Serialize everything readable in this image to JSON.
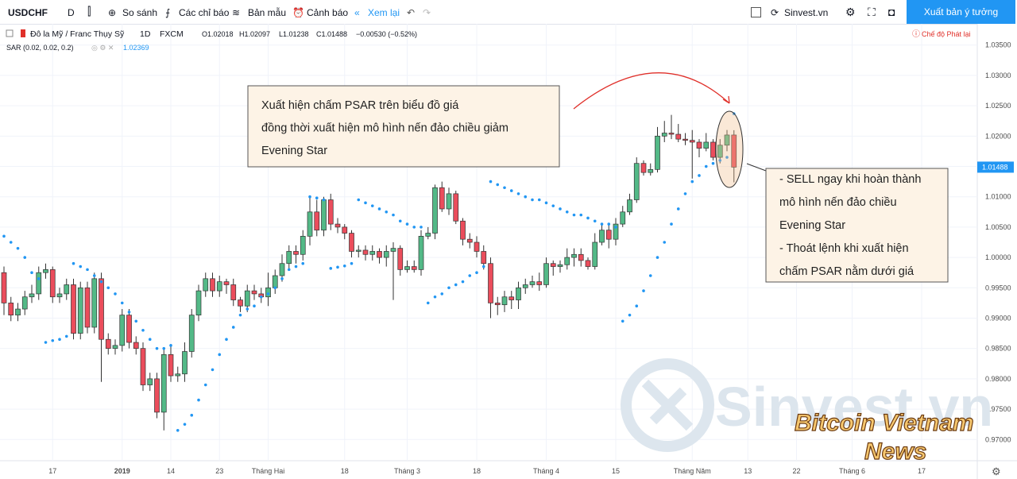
{
  "toolbar": {
    "symbol": "USDCHF",
    "interval": "D",
    "compare": "So sánh",
    "indicators": "Các chỉ báo",
    "templates": "Bản mẫu",
    "alert": "Cảnh báo",
    "replay": "Xem lại",
    "site": "Sinvest.vn",
    "publish": "Xuất bản ý tưởng"
  },
  "legend": {
    "name": "Đô la Mỹ / Franc Thụy Sỹ",
    "interval": "1D",
    "source": "FXCM",
    "open": "O1.02018",
    "high": "H1.02097",
    "low": "L1.01238",
    "close": "C1.01488",
    "change": "−0.00530 (−0.52%)",
    "replay_mode": "Chế độ Phát lại"
  },
  "annotations": [
    {
      "lines": [
        "Xuất hiện chấm PSAR trên biểu đồ giá",
        "đồng thời xuất hiện mô hình nến đảo chiều giảm",
        "Evening Star"
      ]
    },
    {
      "lines": [
        "- SELL ngay khi hoàn thành",
        "mô hình nến đảo chiều",
        "Evening Star",
        "- Thoát lệnh khi xuất hiện",
        "chấm PSAR nằm dưới giá"
      ]
    }
  ],
  "watermark": {
    "site": "Sinvest.vn",
    "line1": "Bitcoin Vietnam",
    "line2": "News"
  },
  "chart_data": {
    "type": "candlestick",
    "up_color": "#53b987",
    "down_color": "#eb4d5c",
    "categories": [
      null,
      null,
      null,
      null,
      null,
      null,
      null,
      "17",
      null,
      null,
      null,
      null,
      null,
      null,
      null,
      null,
      null,
      "2019",
      null,
      null,
      null,
      null,
      null,
      null,
      "14",
      null,
      null,
      null,
      null,
      null,
      null,
      "23",
      null,
      null,
      null,
      null,
      null,
      null,
      "Tháng Hai",
      null,
      null,
      null,
      null,
      null,
      null,
      null,
      null,
      null,
      null,
      "18",
      null,
      null,
      null,
      null,
      null,
      null,
      null,
      null,
      "Tháng 3",
      null,
      null,
      null,
      null,
      null,
      null,
      null,
      null,
      null,
      "18",
      null,
      null,
      null,
      null,
      null,
      null,
      null,
      null,
      null,
      "Tháng 4",
      null,
      null,
      null,
      null,
      null,
      null,
      null,
      null,
      null,
      "15",
      null,
      null,
      null,
      null,
      null,
      null,
      null,
      null,
      null,
      null,
      "Tháng Năm",
      null,
      null,
      null,
      null,
      null,
      null,
      null,
      "13",
      null,
      null,
      null,
      null,
      null,
      null,
      "22",
      null,
      null,
      null,
      null,
      null,
      null,
      null,
      "Tháng 6",
      null,
      null,
      null,
      null,
      null,
      null,
      null,
      null,
      null,
      "17",
      null,
      null,
      null,
      null,
      null,
      null,
      null,
      null
    ],
    "open": [
      0.9975,
      0.9925,
      0.9905,
      0.9915,
      0.9935,
      0.994,
      0.9975,
      0.998,
      0.9935,
      0.994,
      0.9955,
      0.9875,
      0.995,
      0.9885,
      0.9965,
      0.9865,
      0.985,
      0.9855,
      0.9905,
      0.986,
      0.985,
      0.979,
      0.98,
      0.9745,
      0.984,
      0.9805,
      0.9808,
      0.9845,
      0.9905,
      0.9945,
      0.9965,
      0.9945,
      0.996,
      0.9955,
      0.993,
      0.992,
      0.9945,
      0.994,
      0.9935,
      0.995,
      0.997,
      0.999,
      1.001,
      1.0005,
      1.0035,
      1.0075,
      1.0045,
      1.0095,
      1.0055,
      1.005,
      1.004,
      1.001,
      1.0012,
      1.0005,
      1.001,
      1.0,
      1.001,
      1.0015,
      0.998,
      0.9985,
      0.998,
      1.0035,
      1.004,
      1.0115,
      1.008,
      1.0105,
      1.006,
      1.003,
      1.0025,
      1.001,
      0.999,
      0.9925,
      0.9922,
      0.9935,
      0.993,
      0.995,
      0.9955,
      0.996,
      0.9955,
      0.999,
      0.9985,
      0.9988,
      1.0,
      1.0005,
      0.9995,
      0.9985,
      1.0025,
      1.0045,
      1.003,
      1.0055,
      1.0075,
      1.0095,
      1.0155,
      1.014,
      1.0145,
      1.02,
      1.0205,
      1.0203,
      1.0195,
      1.0193,
      1.019,
      1.018,
      1.019,
      1.0165,
      1.0185,
      1.02018,
      null,
      null,
      null,
      null,
      null,
      null,
      null,
      null,
      null,
      null,
      null,
      null,
      null,
      null,
      null,
      null,
      null,
      null,
      null,
      null,
      null,
      null,
      null,
      null,
      null,
      null,
      null,
      null,
      null,
      null,
      null,
      null,
      null,
      null,
      null
    ],
    "high": [
      0.9985,
      0.9935,
      0.9925,
      0.9945,
      0.9955,
      0.9985,
      0.999,
      0.9985,
      0.995,
      0.9965,
      0.9965,
      0.996,
      0.996,
      0.9975,
      0.9975,
      0.9875,
      0.9865,
      0.9915,
      0.9915,
      0.987,
      0.986,
      0.981,
      0.981,
      0.985,
      0.9855,
      0.982,
      0.986,
      0.9915,
      0.9955,
      0.9975,
      0.9975,
      0.997,
      0.9965,
      0.9965,
      0.9935,
      0.9955,
      0.9955,
      0.995,
      0.9975,
      0.998,
      1.0005,
      1.002,
      1.002,
      1.0045,
      1.01,
      1.0095,
      1.01,
      1.0105,
      1.0065,
      1.0055,
      1.0045,
      1.002,
      1.002,
      1.002,
      1.0015,
      1.002,
      1.0025,
      1.002,
      0.9995,
      0.9995,
      1.0045,
      1.005,
      1.012,
      1.0125,
      1.0115,
      1.011,
      1.0065,
      1.004,
      1.0035,
      1.002,
      1.0,
      0.9935,
      0.9945,
      0.9945,
      0.996,
      0.9965,
      0.997,
      0.9975,
      1.0,
      0.9995,
      0.9995,
      1.0015,
      1.0015,
      1.0015,
      1.0,
      1.004,
      1.0055,
      1.0055,
      1.0065,
      1.0085,
      1.0105,
      1.0165,
      1.016,
      1.0155,
      1.0215,
      1.0225,
      1.0235,
      1.022,
      1.0205,
      1.021,
      1.0195,
      1.0205,
      1.0195,
      1.0195,
      1.021,
      1.02097,
      null,
      null,
      null,
      null,
      null,
      null,
      null,
      null,
      null,
      null,
      null,
      null,
      null,
      null,
      null,
      null,
      null,
      null,
      null,
      null,
      null,
      null,
      null,
      null,
      null,
      null,
      null,
      null,
      null,
      null,
      null,
      null,
      null,
      null,
      null
    ],
    "low": [
      0.9905,
      0.9895,
      0.9895,
      0.9905,
      0.9925,
      0.993,
      0.9965,
      0.9925,
      0.9925,
      0.993,
      0.9865,
      0.9865,
      0.9875,
      0.9875,
      0.9795,
      0.984,
      0.984,
      0.9845,
      0.985,
      0.984,
      0.978,
      0.978,
      0.9735,
      0.9715,
      0.9795,
      0.9795,
      0.9795,
      0.9835,
      0.9895,
      0.9935,
      0.9935,
      0.9935,
      0.994,
      0.992,
      0.991,
      0.991,
      0.993,
      0.9925,
      0.992,
      0.994,
      0.996,
      0.998,
      0.999,
      0.9995,
      1.002,
      1.0035,
      1.0035,
      1.0045,
      1.004,
      1.003,
      1.0,
      1.0,
      0.9995,
      0.9995,
      0.999,
      0.9985,
      0.993,
      0.997,
      0.9975,
      0.9975,
      0.997,
      1.003,
      1.003,
      1.0075,
      1.007,
      1.0055,
      1.002,
      1.0015,
      1.0,
      0.998,
      0.99,
      0.9905,
      0.991,
      0.9915,
      0.9915,
      0.994,
      0.995,
      0.9945,
      0.995,
      0.997,
      0.9975,
      0.998,
      0.9985,
      0.9985,
      0.998,
      0.998,
      1.002,
      1.0015,
      1.002,
      1.005,
      1.007,
      1.009,
      1.0135,
      1.0135,
      1.014,
      1.019,
      1.0195,
      1.019,
      1.0185,
      1.013,
      1.0165,
      1.0175,
      1.016,
      1.0155,
      1.0175,
      1.01238,
      null,
      null,
      null,
      null,
      null,
      null,
      null,
      null,
      null,
      null,
      null,
      null,
      null,
      null,
      null,
      null,
      null,
      null,
      null,
      null,
      null,
      null,
      null,
      null,
      null,
      null,
      null,
      null,
      null,
      null,
      null,
      null,
      null,
      null,
      null
    ],
    "close": [
      0.9925,
      0.9905,
      0.9915,
      0.9935,
      0.994,
      0.9975,
      0.998,
      0.9935,
      0.994,
      0.9955,
      0.9875,
      0.995,
      0.9885,
      0.9965,
      0.9865,
      0.985,
      0.9855,
      0.9905,
      0.986,
      0.985,
      0.979,
      0.98,
      0.9745,
      0.984,
      0.9805,
      0.9808,
      0.9845,
      0.9905,
      0.9945,
      0.9965,
      0.9945,
      0.996,
      0.9955,
      0.993,
      0.992,
      0.9945,
      0.994,
      0.9935,
      0.995,
      0.997,
      0.999,
      1.001,
      1.0005,
      1.0035,
      1.0075,
      1.0045,
      1.0095,
      1.0055,
      1.005,
      1.004,
      1.001,
      1.0012,
      1.0005,
      1.001,
      1.0,
      1.001,
      1.0015,
      0.998,
      0.9985,
      0.998,
      1.0035,
      1.004,
      1.0115,
      1.008,
      1.0105,
      1.006,
      1.003,
      1.0025,
      1.001,
      0.999,
      0.9925,
      0.9922,
      0.9935,
      0.993,
      0.995,
      0.9955,
      0.996,
      0.9955,
      0.999,
      0.9985,
      0.9988,
      1.0,
      1.0005,
      0.9995,
      0.9985,
      1.0025,
      1.0045,
      1.003,
      1.0055,
      1.0075,
      1.0095,
      1.0155,
      1.014,
      1.0145,
      1.02,
      1.0205,
      1.0203,
      1.0195,
      1.0193,
      1.019,
      1.018,
      1.019,
      1.0165,
      1.0185,
      1.02018,
      1.01488,
      null,
      null,
      null,
      null,
      null,
      null,
      null,
      null,
      null,
      null,
      null,
      null,
      null,
      null,
      null,
      null,
      null,
      null,
      null,
      null,
      null,
      null,
      null,
      null,
      null,
      null,
      null,
      null,
      null,
      null,
      null,
      null,
      null,
      null,
      null
    ],
    "sar": {
      "name": "SAR (0.02, 0.02, 0.2)",
      "color": "#2196f3",
      "values": [
        1.0035,
        1.0025,
        1.0015,
        1.0,
        0.9975,
        0.9965,
        0.986,
        0.9863,
        0.9865,
        0.987,
        0.999,
        0.9985,
        0.998,
        0.997,
        0.996,
        0.995,
        0.994,
        0.9925,
        0.991,
        0.9895,
        0.988,
        0.9865,
        0.985,
        0.985,
        0.9855,
        0.9715,
        0.9725,
        0.974,
        0.9765,
        0.979,
        0.9815,
        0.984,
        0.9865,
        0.9885,
        0.9905,
        0.9915,
        0.992,
        0.9935,
        0.994,
        0.995,
        0.9965,
        0.998,
        0.9985,
        0.999,
        1.01,
        1.0098,
        1.0095,
        0.9982,
        0.9984,
        0.9986,
        0.999,
        1.0095,
        1.009,
        1.0085,
        1.008,
        1.0075,
        1.007,
        1.006,
        1.0055,
        1.005,
        1.005,
        0.9925,
        0.9935,
        0.994,
        0.995,
        0.9955,
        0.996,
        0.997,
        0.9975,
        0.9985,
        1.0125,
        1.012,
        1.0115,
        1.011,
        1.0105,
        1.01,
        1.0095,
        1.0095,
        1.009,
        1.0085,
        1.008,
        1.0075,
        1.007,
        1.007,
        1.0065,
        1.006,
        1.0055,
        1.0055,
        1.005,
        0.9895,
        0.9905,
        0.992,
        0.9945,
        0.997,
        1.0,
        1.0025,
        1.0055,
        1.008,
        1.0105,
        1.0125,
        1.0135,
        1.015,
        1.0155,
        1.016,
        1.0165,
        1.02369,
        null,
        null,
        null,
        null,
        null,
        null,
        null,
        null,
        null,
        null,
        null,
        null,
        null,
        null,
        null,
        null,
        null,
        null,
        null,
        null,
        null,
        null,
        null,
        null,
        null,
        null,
        null,
        null,
        null,
        null,
        null,
        null,
        null,
        null,
        null
      ]
    },
    "ylim": [
      0.9665,
      1.0385
    ],
    "yticks": [
      {
        "value": 0.97,
        "label": "0.97000"
      },
      {
        "value": 0.975,
        "label": "0.97500"
      },
      {
        "value": 0.98,
        "label": "0.98000"
      },
      {
        "value": 0.985,
        "label": "0.98500"
      },
      {
        "value": 0.99,
        "label": "0.99000"
      },
      {
        "value": 0.995,
        "label": "0.99500"
      },
      {
        "value": 1.0,
        "label": "1.00000"
      },
      {
        "value": 1.005,
        "label": "1.00500"
      },
      {
        "value": 1.01,
        "label": "1.01000"
      },
      {
        "value": 1.015,
        "label": "1.01500"
      },
      {
        "value": 1.02,
        "label": "1.02000"
      },
      {
        "value": 1.025,
        "label": "1.02500"
      },
      {
        "value": 1.03,
        "label": "1.03000"
      },
      {
        "value": 1.035,
        "label": "1.03500"
      }
    ],
    "grid": true
  }
}
